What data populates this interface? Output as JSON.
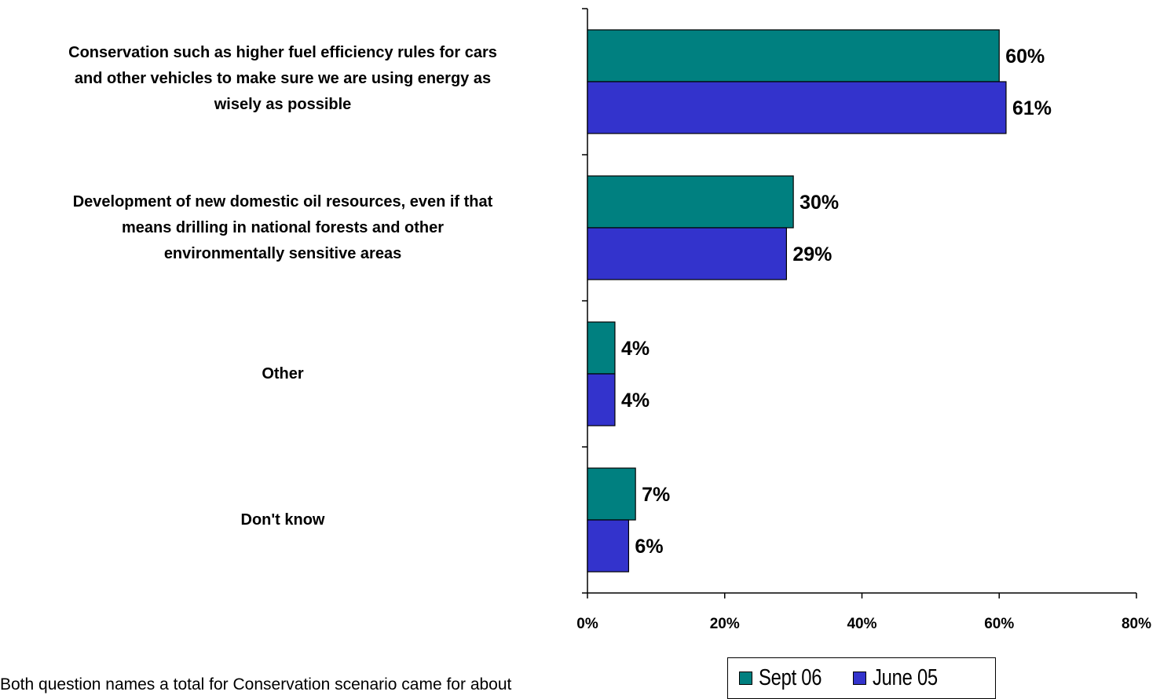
{
  "chart_data": {
    "type": "bar",
    "orientation": "horizontal",
    "categories": [
      [
        "Conservation such as higher fuel efficiency rules for cars",
        "and other vehicles to make sure we are using energy as",
        "wisely as possible"
      ],
      [
        "Development of new domestic oil resources, even if that",
        "means drilling in national forests and other",
        "environmentally sensitive areas"
      ],
      [
        "Other"
      ],
      [
        "Don't know"
      ]
    ],
    "series": [
      {
        "name": "Sept 06",
        "values": [
          60,
          30,
          4,
          7
        ],
        "labels": [
          "60%",
          "30%",
          "4%",
          "7%"
        ],
        "color": "#008080"
      },
      {
        "name": "June 05",
        "values": [
          61,
          29,
          4,
          6
        ],
        "labels": [
          "61%",
          "29%",
          "4%",
          "6%"
        ],
        "color": "#3333CC"
      }
    ],
    "xlim": [
      0,
      80
    ],
    "xticks": [
      0,
      20,
      40,
      60,
      80
    ],
    "xtick_labels": [
      "0%",
      "20%",
      "40%",
      "60%",
      "80%"
    ],
    "grid": false,
    "legend_placement": "bottom-right"
  },
  "footnote": "Both question names a total for Conservation scenario came for about"
}
